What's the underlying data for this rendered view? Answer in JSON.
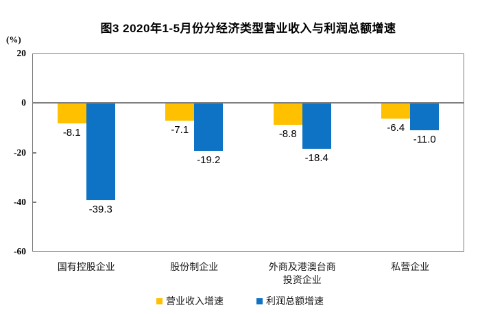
{
  "chart_data": {
    "type": "bar",
    "title": "图3  2020年1-5月份分经济类型营业收入与利润总额增速",
    "ylabel": "(%)",
    "ylim": [
      -60,
      20
    ],
    "yticks": [
      20,
      0,
      -20,
      -40,
      -60
    ],
    "grid": false,
    "data_labels": true,
    "legend_position": "bottom",
    "categories": [
      "国有控股企业",
      "股份制企业",
      "外商及港澳台商\n投资企业",
      "私营企业"
    ],
    "series": [
      {
        "name": "营业收入增速",
        "slug": "revenue-growth",
        "color": "#FFC000",
        "values": [
          -8.1,
          -7.1,
          -8.8,
          -6.4
        ]
      },
      {
        "name": "利润总额增速",
        "slug": "profit-growth",
        "color": "#0E73C4",
        "values": [
          -39.3,
          -19.2,
          -18.4,
          -11.0
        ]
      }
    ],
    "colors": {
      "zero_line": "#808080",
      "frame": "#7a7a7a",
      "text": "#000000"
    }
  }
}
